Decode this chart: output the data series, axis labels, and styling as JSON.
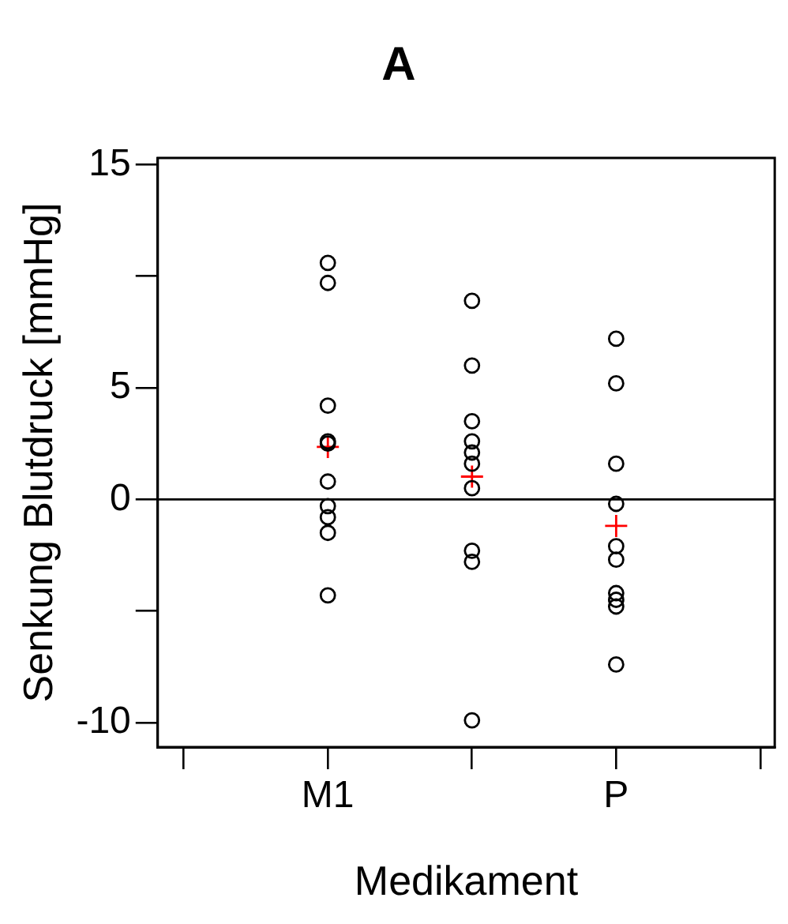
{
  "chart_data": {
    "type": "scatter",
    "title": "A",
    "xlabel": "Medikament",
    "ylabel": "Senkung Blutdruck [mmHg]",
    "categories": [
      "M1",
      null,
      "P"
    ],
    "ylim": [
      -11.1,
      15.3
    ],
    "yticks": [
      -10,
      {
        "value": -5,
        "label": null
      },
      0,
      5,
      {
        "value": 10,
        "label": null
      },
      15
    ],
    "grid": false,
    "legend": false,
    "ref_lines": [
      {
        "axis": "y",
        "value": 0,
        "color": "#000000"
      }
    ],
    "series": [
      {
        "type": "scatter",
        "marker": "circle",
        "color": "#000000",
        "values": [
          10.6,
          8.9,
          7.2
        ]
      },
      {
        "type": "scatter",
        "marker": "circle",
        "color": "#000000",
        "values": [
          9.7,
          6.0,
          5.2
        ]
      },
      {
        "type": "scatter",
        "marker": "circle",
        "color": "#000000",
        "values": [
          4.2,
          3.5,
          1.6
        ]
      },
      {
        "type": "scatter",
        "marker": "circle",
        "color": "#000000",
        "values": [
          2.6,
          2.6,
          -0.2
        ]
      },
      {
        "type": "scatter",
        "marker": "circle",
        "color": "#000000",
        "values": [
          2.5,
          2.1,
          -2.1
        ]
      },
      {
        "type": "scatter",
        "marker": "circle",
        "color": "#000000",
        "values": [
          0.8,
          1.6,
          -2.7
        ]
      },
      {
        "type": "scatter",
        "marker": "circle",
        "color": "#000000",
        "values": [
          -0.3,
          0.5,
          -4.2
        ]
      },
      {
        "type": "scatter",
        "marker": "circle",
        "color": "#000000",
        "values": [
          -0.8,
          -2.3,
          -4.5
        ]
      },
      {
        "type": "scatter",
        "marker": "circle",
        "color": "#000000",
        "values": [
          -1.5,
          -2.8,
          -4.8
        ]
      },
      {
        "type": "scatter",
        "marker": "circle",
        "color": "#000000",
        "values": [
          -4.3,
          -9.9,
          -7.4
        ]
      },
      {
        "type": "scatter",
        "marker": "cross",
        "color": "#ff0000",
        "values": [
          2.35,
          1.02,
          -1.19
        ]
      }
    ]
  }
}
